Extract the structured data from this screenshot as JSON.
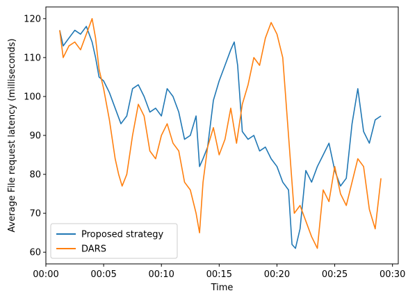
{
  "chart_data": {
    "type": "line",
    "title": "",
    "xlabel": "Time",
    "ylabel": "Average File request latency (milliseconds)",
    "xlim": [
      0,
      30.5
    ],
    "ylim": [
      57,
      123
    ],
    "x_ticks": [
      0,
      5,
      10,
      15,
      20,
      25,
      30
    ],
    "x_tick_labels": [
      "00:00",
      "00:05",
      "00:10",
      "00:15",
      "00:20",
      "00:25",
      "00:30"
    ],
    "y_ticks": [
      60,
      70,
      80,
      90,
      100,
      110,
      120
    ],
    "y_tick_labels": [
      "60",
      "70",
      "80",
      "90",
      "100",
      "110",
      "120"
    ],
    "grid": false,
    "legend_position": "lower-left",
    "series": [
      {
        "name": "Proposed strategy",
        "color": "#1f77b4",
        "x": [
          1.2,
          1.5,
          2.0,
          2.5,
          3.0,
          3.5,
          4.0,
          4.3,
          4.6,
          5.0,
          5.5,
          6.0,
          6.5,
          7.0,
          7.5,
          8.0,
          8.5,
          9.0,
          9.5,
          10.0,
          10.5,
          11.0,
          11.5,
          12.0,
          12.5,
          13.0,
          13.3,
          13.6,
          14.0,
          14.5,
          15.0,
          15.5,
          16.0,
          16.3,
          16.6,
          17.0,
          17.5,
          18.0,
          18.5,
          19.0,
          19.5,
          20.0,
          20.5,
          21.0,
          21.3,
          21.6,
          22.0,
          22.5,
          23.0,
          23.5,
          24.0,
          24.5,
          25.0,
          25.5,
          26.0,
          26.5,
          27.0,
          27.5,
          28.0,
          28.5,
          29.0
        ],
        "y": [
          117,
          113,
          115,
          117,
          116,
          118,
          114,
          110,
          105,
          104,
          101,
          97,
          93,
          95,
          102,
          103,
          100,
          96,
          97,
          95,
          102,
          100,
          96,
          89,
          90,
          95,
          82,
          84,
          87,
          99,
          104,
          108,
          112,
          114,
          108,
          91,
          89,
          90,
          86,
          87,
          84,
          82,
          78,
          76,
          62,
          61,
          66,
          81,
          78,
          82,
          85,
          88,
          81,
          77,
          79,
          93,
          102,
          91,
          88,
          94,
          95
        ]
      },
      {
        "name": "DARS",
        "color": "#ff7f0e",
        "x": [
          1.2,
          1.5,
          2.0,
          2.5,
          3.0,
          3.5,
          4.0,
          4.3,
          4.6,
          5.0,
          5.5,
          6.0,
          6.3,
          6.6,
          7.0,
          7.5,
          8.0,
          8.5,
          9.0,
          9.5,
          10.0,
          10.5,
          11.0,
          11.5,
          12.0,
          12.5,
          13.0,
          13.3,
          13.6,
          14.0,
          14.5,
          15.0,
          15.5,
          16.0,
          16.5,
          17.0,
          17.5,
          18.0,
          18.5,
          19.0,
          19.5,
          20.0,
          20.5,
          21.0,
          21.5,
          22.0,
          22.5,
          23.0,
          23.5,
          24.0,
          24.5,
          25.0,
          25.5,
          26.0,
          26.5,
          27.0,
          27.5,
          28.0,
          28.5,
          29.0
        ],
        "y": [
          117,
          110,
          113,
          114,
          112,
          116,
          120,
          115,
          107,
          102,
          94,
          84,
          80,
          77,
          80,
          90,
          98,
          95,
          86,
          84,
          90,
          93,
          88,
          86,
          78,
          76,
          70,
          65,
          78,
          87,
          92,
          85,
          89,
          97,
          88,
          98,
          103,
          110,
          108,
          115,
          119,
          116,
          110,
          90,
          70,
          72,
          68,
          64,
          61,
          76,
          73,
          82,
          75,
          72,
          78,
          84,
          82,
          71,
          66,
          79
        ]
      }
    ]
  }
}
